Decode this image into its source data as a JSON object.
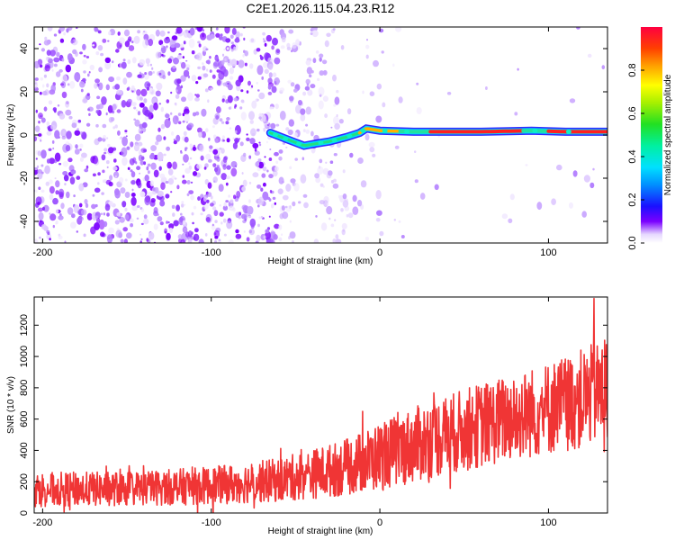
{
  "title": "C2E1.2026.115.04.23.R12",
  "chart_data": [
    {
      "type": "heatmap",
      "name": "spectrogram",
      "xlabel": "Height of straight line (km)",
      "ylabel": "Frequency (Hz)",
      "xlim": [
        -205,
        135
      ],
      "ylim": [
        -50,
        50
      ],
      "xticks": [
        -200,
        -100,
        0,
        100
      ],
      "yticks": [
        -40,
        -20,
        0,
        20,
        40
      ],
      "colorbar": {
        "label": "Normalized spectral amplitude",
        "range": [
          0,
          1
        ],
        "ticks": [
          0.0,
          0.2,
          0.4,
          0.6,
          0.8
        ],
        "tick_labels": [
          "0.0",
          "0.2",
          "0.4",
          "0.6",
          "0.8"
        ]
      },
      "ridge": [
        {
          "x": -65,
          "y": 1
        },
        {
          "x": -55,
          "y": -2
        },
        {
          "x": -45,
          "y": -5
        },
        {
          "x": -38,
          "y": -4
        },
        {
          "x": -30,
          "y": -3
        },
        {
          "x": -20,
          "y": -1
        },
        {
          "x": -12,
          "y": 1
        },
        {
          "x": -8,
          "y": 3
        },
        {
          "x": 0,
          "y": 2
        },
        {
          "x": 20,
          "y": 1.5
        },
        {
          "x": 60,
          "y": 1.5
        },
        {
          "x": 90,
          "y": 2
        },
        {
          "x": 110,
          "y": 1.5
        },
        {
          "x": 135,
          "y": 1.5
        }
      ]
    },
    {
      "type": "line",
      "name": "snr",
      "xlabel": "Height of straight line (km)",
      "ylabel": "SNR (10 * v/v)",
      "xlim": [
        -205,
        135
      ],
      "ylim": [
        0,
        1380
      ],
      "xticks": [
        -200,
        -100,
        0,
        100
      ],
      "yticks": [
        0,
        200,
        400,
        600,
        800,
        1000,
        1200
      ],
      "color": "#f03535",
      "trend": [
        {
          "x": -205,
          "mean": 150,
          "amp": 110
        },
        {
          "x": -150,
          "mean": 155,
          "amp": 110
        },
        {
          "x": -100,
          "mean": 175,
          "amp": 120
        },
        {
          "x": -60,
          "mean": 210,
          "amp": 140
        },
        {
          "x": -20,
          "mean": 290,
          "amp": 180
        },
        {
          "x": 0,
          "mean": 360,
          "amp": 220
        },
        {
          "x": 30,
          "mean": 470,
          "amp": 250
        },
        {
          "x": 60,
          "mean": 560,
          "amp": 270
        },
        {
          "x": 90,
          "mean": 640,
          "amp": 290
        },
        {
          "x": 120,
          "mean": 730,
          "amp": 320
        },
        {
          "x": 135,
          "mean": 790,
          "amp": 330
        }
      ],
      "peak": {
        "x": 127,
        "y": 1370
      }
    }
  ]
}
